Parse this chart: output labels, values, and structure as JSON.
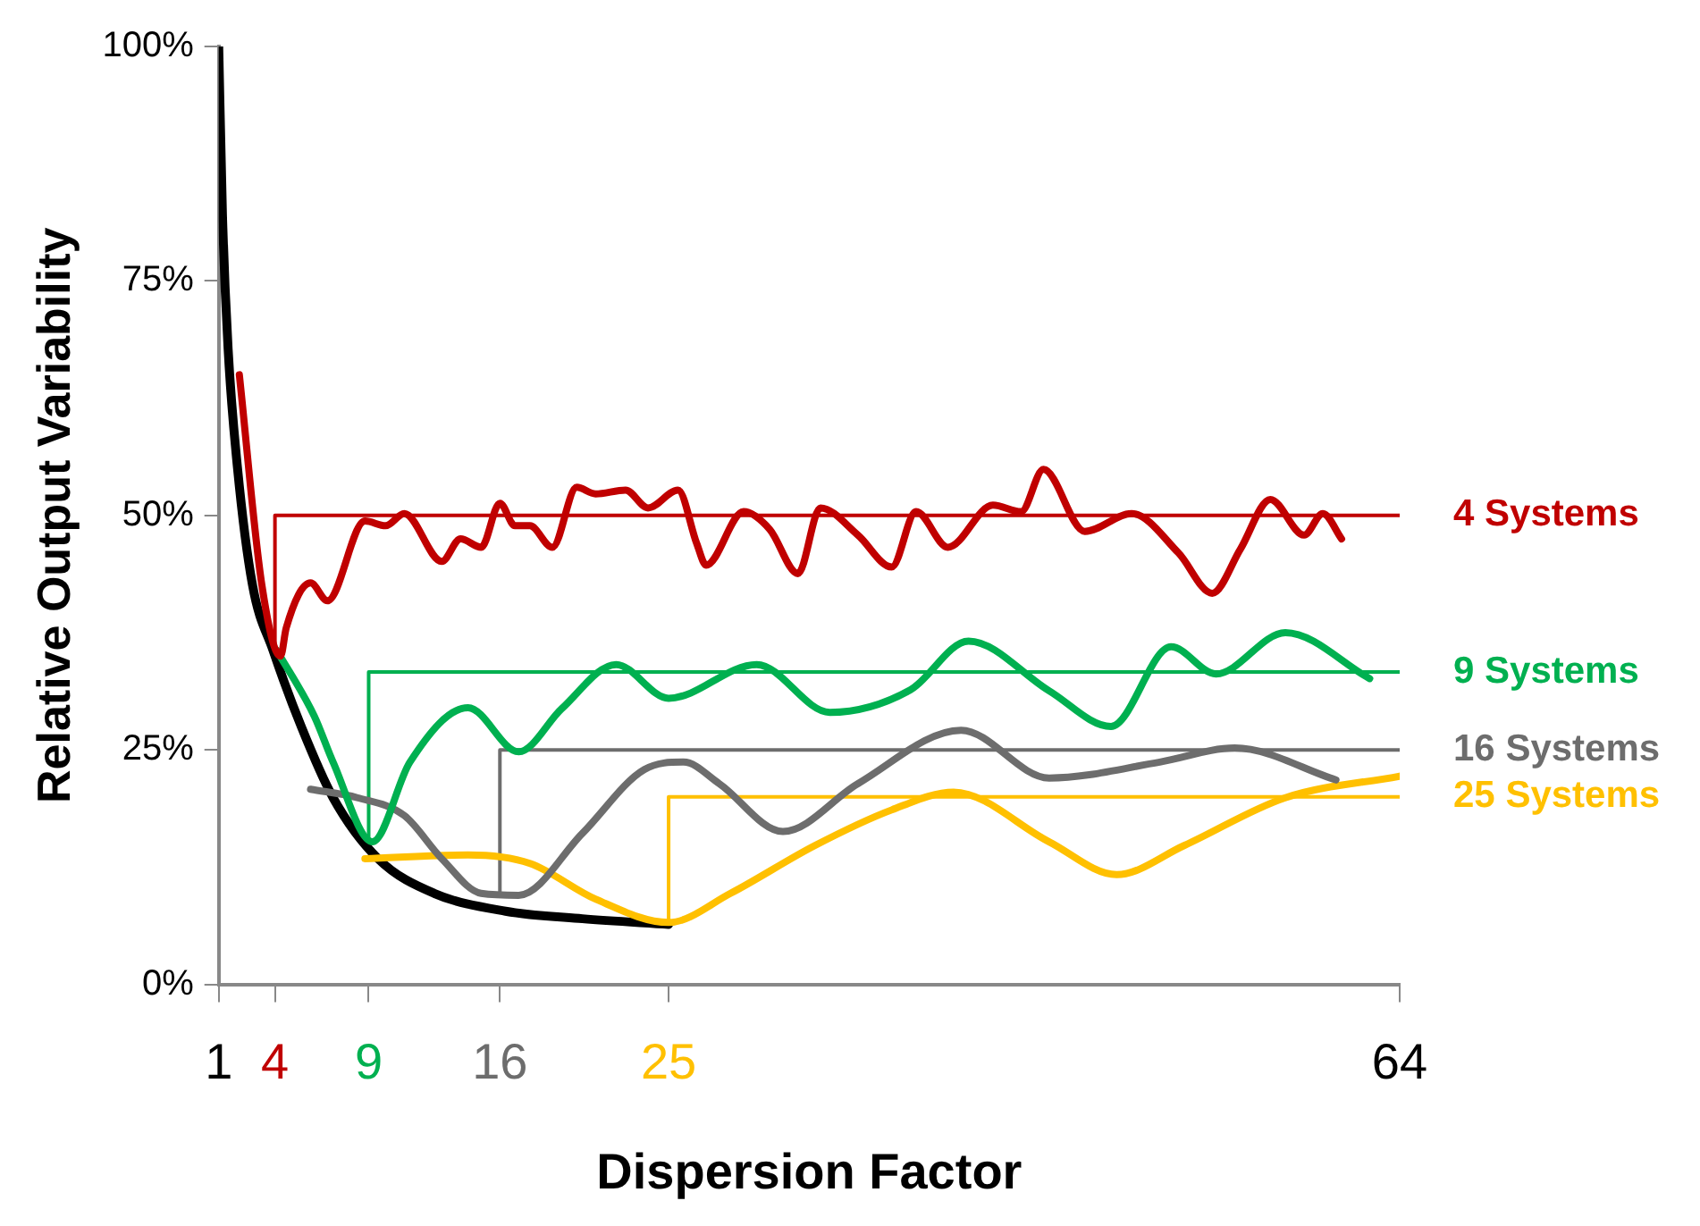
{
  "chart_data": {
    "type": "line",
    "xlabel": "Dispersion Factor",
    "ylabel": "Relative Output Variability",
    "xlim": [
      1,
      64
    ],
    "xticks": [
      1,
      4,
      9,
      16,
      25,
      64
    ],
    "ylim": [
      0,
      100
    ],
    "yticks": [
      {
        "value": 0,
        "label": "0%"
      },
      {
        "value": 25,
        "label": "25%"
      },
      {
        "value": 50,
        "label": "50%"
      },
      {
        "value": 75,
        "label": "75%"
      },
      {
        "value": 100,
        "label": "100%"
      }
    ],
    "grid": false,
    "legend": false,
    "marker": "none",
    "line_style": "solid",
    "series": [
      {
        "color": "#c00000",
        "x": [
          2.1,
          3.3,
          4.3,
          4.6,
          5.9,
          6.8,
          8.8,
          9.9,
          10.9,
          12.9,
          13.9,
          15.0,
          16.0,
          16.8,
          17.6,
          18.8,
          20.1,
          21.1,
          22.7,
          23.9,
          25.5,
          26.5,
          27.0,
          29.0,
          30.4,
          31.9,
          33.1,
          35.1,
          36.9,
          38.2,
          39.9,
          42.3,
          43.8,
          45.0,
          47.2,
          49.7,
          52.2,
          54.0,
          55.5,
          57.1,
          58.9,
          59.9,
          60.9
        ],
        "values": [
          65.0,
          42.6,
          35.0,
          38.0,
          42.8,
          40.9,
          49.4,
          48.9,
          50.2,
          45.1,
          47.5,
          46.6,
          51.3,
          48.9,
          48.9,
          46.6,
          53.0,
          52.3,
          52.7,
          50.8,
          52.7,
          47.0,
          44.7,
          50.4,
          48.5,
          43.8,
          50.8,
          47.9,
          44.5,
          50.4,
          46.6,
          51.1,
          50.4,
          54.9,
          48.3,
          50.2,
          46.0,
          41.7,
          46.4,
          51.7,
          47.9,
          50.2,
          47.5
        ]
      },
      {
        "color": "#00b050",
        "x": [
          4.1,
          6.1,
          7.1,
          9.2,
          11.2,
          14.3,
          17.0,
          19.3,
          22.2,
          25.0,
          29.7,
          33.6,
          37.9,
          41.0,
          45.3,
          48.6,
          51.8,
          54.2,
          57.9,
          62.4
        ],
        "values": [
          35.6,
          28.6,
          23.7,
          15.2,
          23.7,
          29.5,
          24.8,
          29.4,
          34.1,
          30.5,
          34.1,
          29.0,
          31.4,
          36.6,
          31.3,
          27.5,
          36.0,
          33.1,
          37.5,
          32.6
        ]
      },
      {
        "color": "#6d6d6d",
        "x": [
          5.9,
          8.4,
          10.9,
          12.9,
          15.0,
          17.0,
          20.4,
          23.7,
          25.8,
          27.7,
          31.1,
          35.1,
          40.6,
          45.3,
          51.2,
          55.2,
          60.6
        ],
        "values": [
          20.8,
          19.9,
          18.0,
          13.4,
          9.7,
          9.5,
          16.1,
          22.9,
          23.7,
          21.4,
          16.3,
          21.4,
          27.1,
          22.0,
          23.7,
          25.2,
          21.8
        ]
      },
      {
        "color": "#ffc000",
        "x": [
          8.8,
          14.3,
          17.6,
          21.1,
          25.0,
          28.3,
          32.8,
          36.9,
          40.2,
          45.3,
          48.9,
          52.5,
          57.9,
          64
        ],
        "values": [
          13.4,
          13.8,
          12.9,
          9.1,
          6.6,
          9.7,
          14.8,
          18.6,
          20.5,
          15.2,
          11.7,
          14.8,
          19.9,
          22.2
        ]
      },
      {
        "color": "#000000",
        "x": [
          1,
          1.2,
          1.5,
          2.0,
          2.8,
          3.9,
          5.4,
          7.1,
          9.5,
          12.5,
          16.3,
          20.4,
          25.0
        ],
        "values": [
          100,
          82,
          67.8,
          55.1,
          42.6,
          35.6,
          27.5,
          19.9,
          13.4,
          9.7,
          7.8,
          7.0,
          6.4
        ]
      },
      {
        "name": "4 Systems",
        "color": "#c00000",
        "x": [
          4,
          4,
          64
        ],
        "values": [
          35.6,
          50,
          50
        ]
      },
      {
        "name": "9 Systems",
        "color": "#00b050",
        "x": [
          9,
          9,
          64
        ],
        "values": [
          15.2,
          33.3,
          33.3
        ]
      },
      {
        "name": "16 Systems",
        "color": "#6d6d6d",
        "x": [
          16,
          16,
          64
        ],
        "values": [
          9.5,
          25,
          25
        ]
      },
      {
        "name": "25 Systems",
        "color": "#ffc000",
        "x": [
          25,
          25,
          64
        ],
        "values": [
          6.5,
          20,
          20
        ]
      }
    ]
  }
}
